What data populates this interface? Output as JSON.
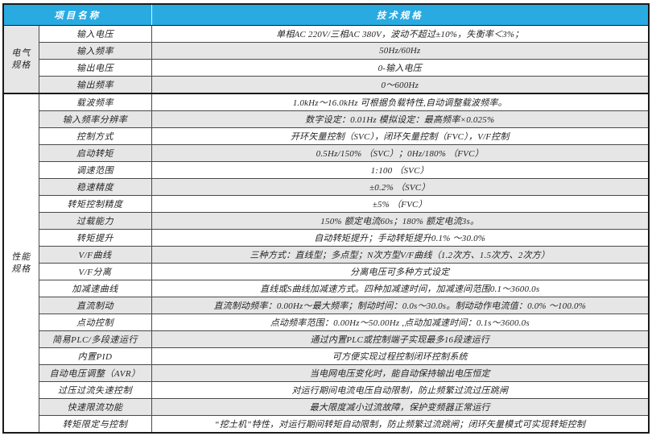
{
  "colors": {
    "header_bg": "#29abe2",
    "header_text": "#ffffff",
    "row_alt_bg": "#e6e6e6",
    "border_dark": "#1a1a1a",
    "border_light": "#4a4a4a"
  },
  "header": {
    "item_col": "项目名称",
    "spec_col": "技术规格"
  },
  "groups": [
    {
      "label": "电气\n规格",
      "shaded": true,
      "rows": [
        {
          "name": "输入电压",
          "shaded": false,
          "value": "单相AC 220V/三相AC 380V，波动不超过±10%，失衡率＜3%；"
        },
        {
          "name": "输入频率",
          "shaded": true,
          "value": "50Hz/60Hz"
        },
        {
          "name": "输出电压",
          "shaded": false,
          "value": "0-输入电压"
        },
        {
          "name": "输出频率",
          "shaded": true,
          "value": "0～600Hz"
        }
      ]
    },
    {
      "label": "性能\n规格",
      "shaded": false,
      "rows": [
        {
          "name": "载波频率",
          "shaded": false,
          "value": "1.0kHz～16.0kHz 可根据负载特性,自动调整载波频率。"
        },
        {
          "name": "输入频率分辨率",
          "shaded": true,
          "value": "数字设定：0.01Hz 模拟设定：最高频率×0.025%"
        },
        {
          "name": "控制方式",
          "shaded": false,
          "value": "开环矢量控制（SVC），闭环矢量控制（FVC），V/F控制"
        },
        {
          "name": "启动转矩",
          "shaded": true,
          "value": "0.5Hz/150% （SVC）；0Hz/180% （FVC）"
        },
        {
          "name": "调速范围",
          "shaded": false,
          "value": "1:100 （SVC）"
        },
        {
          "name": "稳速精度",
          "shaded": true,
          "value": "±0.2% （SVC）"
        },
        {
          "name": "转矩控制精度",
          "shaded": false,
          "value": "±5% （FVC）"
        },
        {
          "name": "过载能力",
          "shaded": true,
          "value": "150% 额定电流60s；180% 额定电流3s。"
        },
        {
          "name": "转矩提升",
          "shaded": false,
          "value": "自动转矩提升；手动转矩提升0.1% ～30.0%"
        },
        {
          "name": "V/F曲线",
          "shaded": true,
          "value": "三种方式：直线型；多点型；N次方型V/F曲线（1.2次方、1.5次方、2次方）"
        },
        {
          "name": "V/F分离",
          "shaded": false,
          "value": "分离电压可多种方式设定"
        },
        {
          "name": "加减速曲线",
          "shaded": false,
          "value": "直线或S曲线加减速方式。四种加减速时间，加减速间范围0.1～3600.0s"
        },
        {
          "name": "直流制动",
          "shaded": true,
          "value": "直流制动频率：0.00Hz～最大频率；制动时间：0.0s～30.0s。制动动作电流值：0.0% ～100.0%"
        },
        {
          "name": "点动控制",
          "shaded": false,
          "value": "点动频率范围：0.00Hz～50.00Hz ,点动加减速时间：0.1s～3600.0s"
        },
        {
          "name": "简易PLC/多段速运行",
          "shaded": true,
          "value": "通过内置PLC或控制端子实现最多16段速运行"
        },
        {
          "name": "内置PID",
          "shaded": false,
          "value": "可方便实现过程控制闭环控制系统"
        },
        {
          "name": "自动电压调整（AVR）",
          "shaded": true,
          "value": "当电网电压变化时，能自动保持输出电压恒定"
        },
        {
          "name": "过压过流失速控制",
          "shaded": false,
          "value": "对运行期间电流电压自动限制，防止频繁过流过压跳闸"
        },
        {
          "name": "快速限流功能",
          "shaded": true,
          "value": "最大限度减小过流故障，保护变频器正常运行"
        },
        {
          "name": "转矩限定与控制",
          "shaded": false,
          "value": "“挖土机”特性，对运行期间转矩自动限制，防止频繁过流跳闸；闭环矢量模式可实现转矩控制"
        }
      ]
    }
  ]
}
